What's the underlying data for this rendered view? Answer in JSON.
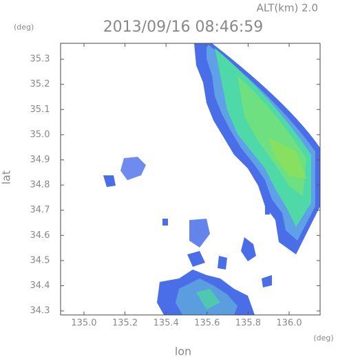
{
  "chart_data": {
    "type": "radar-echo-map",
    "title": "2013/09/16 08:46:59",
    "altitude_label": "ALT(km) 2.0",
    "x_label": "lon",
    "y_label": "lat",
    "x_unit": "(deg)",
    "y_unit": "(deg)",
    "xlim": [
      134.886,
      136.151
    ],
    "ylim": [
      34.284,
      35.363
    ],
    "xticks": [
      {
        "value": 135,
        "label": "135.0"
      },
      135.2,
      135.4,
      135.6,
      135.8,
      {
        "value": 136,
        "label": "136.0"
      }
    ],
    "yticks": [
      34.3,
      34.4,
      34.5,
      34.6,
      34.7,
      34.8,
      34.9,
      {
        "value": 35,
        "label": "35.0"
      },
      35.1,
      35.2,
      35.3
    ]
  }
}
